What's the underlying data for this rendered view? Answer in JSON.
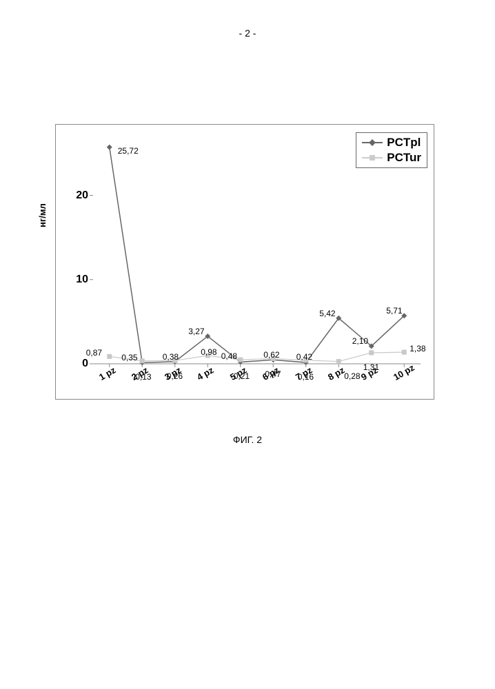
{
  "page_number": "- 2 -",
  "caption": "ФИГ. 2",
  "chart": {
    "type": "line",
    "ylabel": "нг/мл",
    "xlim": [
      0.5,
      10.5
    ],
    "ylim": [
      0,
      27
    ],
    "ytick_positions": [
      0,
      10,
      20
    ],
    "ytick_labels": [
      "0",
      "10",
      "20"
    ],
    "categories": [
      "1 pz",
      "2 pz",
      "3 pz",
      "4 pz",
      "5 pz",
      "6 pz",
      "7 pz",
      "8 pz",
      "9 pz",
      "10 pz"
    ],
    "background_color": "#ffffff",
    "frame_color": "#888888",
    "legend": {
      "position": "top-right",
      "border_color": "#666666",
      "items": [
        {
          "label": "PCTpl",
          "color": "#666666",
          "marker": "diamond"
        },
        {
          "label": "PCTur",
          "color": "#cccccc",
          "marker": "square"
        }
      ]
    },
    "series": [
      {
        "name": "PCTpl",
        "color": "#666666",
        "line_width": 1.5,
        "marker": "diamond",
        "marker_size": 8,
        "values": [
          25.72,
          0.13,
          0.26,
          3.27,
          0.21,
          0.47,
          0.16,
          5.42,
          2.1,
          5.71
        ],
        "labels": [
          "25,72",
          "0,13",
          "0,26",
          "3,27",
          "0,21",
          "0,47",
          "0,16",
          "5,42",
          "2,10",
          "5,71"
        ],
        "label_offsets": [
          {
            "dx": 12,
            "dy": -2
          },
          {
            "dx": -10,
            "dy": 14
          },
          {
            "dx": -12,
            "dy": 14
          },
          {
            "dx": -28,
            "dy": -14
          },
          {
            "dx": -10,
            "dy": 14
          },
          {
            "dx": -12,
            "dy": 14
          },
          {
            "dx": -12,
            "dy": 14
          },
          {
            "dx": -28,
            "dy": -14
          },
          {
            "dx": -28,
            "dy": -14
          },
          {
            "dx": -26,
            "dy": -14
          }
        ]
      },
      {
        "name": "PCTur",
        "color": "#c8c8c8",
        "line_width": 1.2,
        "marker": "square",
        "marker_size": 7,
        "values": [
          0.87,
          0.35,
          0.38,
          0.98,
          0.48,
          0.62,
          0.42,
          0.28,
          1.31,
          1.38
        ],
        "labels": [
          "0,87",
          "0,35",
          "0,38",
          "0,98",
          "0,48",
          "0,62",
          "0,42",
          "0,28",
          "1,31",
          "1,38"
        ],
        "label_offsets": [
          {
            "dx": -34,
            "dy": -12
          },
          {
            "dx": -30,
            "dy": -12
          },
          {
            "dx": -18,
            "dy": -12
          },
          {
            "dx": -10,
            "dy": -12
          },
          {
            "dx": -28,
            "dy": -12
          },
          {
            "dx": -14,
            "dy": -12
          },
          {
            "dx": -14,
            "dy": -12
          },
          {
            "dx": 8,
            "dy": 14
          },
          {
            "dx": -12,
            "dy": 14
          },
          {
            "dx": 8,
            "dy": -12
          }
        ]
      }
    ]
  }
}
